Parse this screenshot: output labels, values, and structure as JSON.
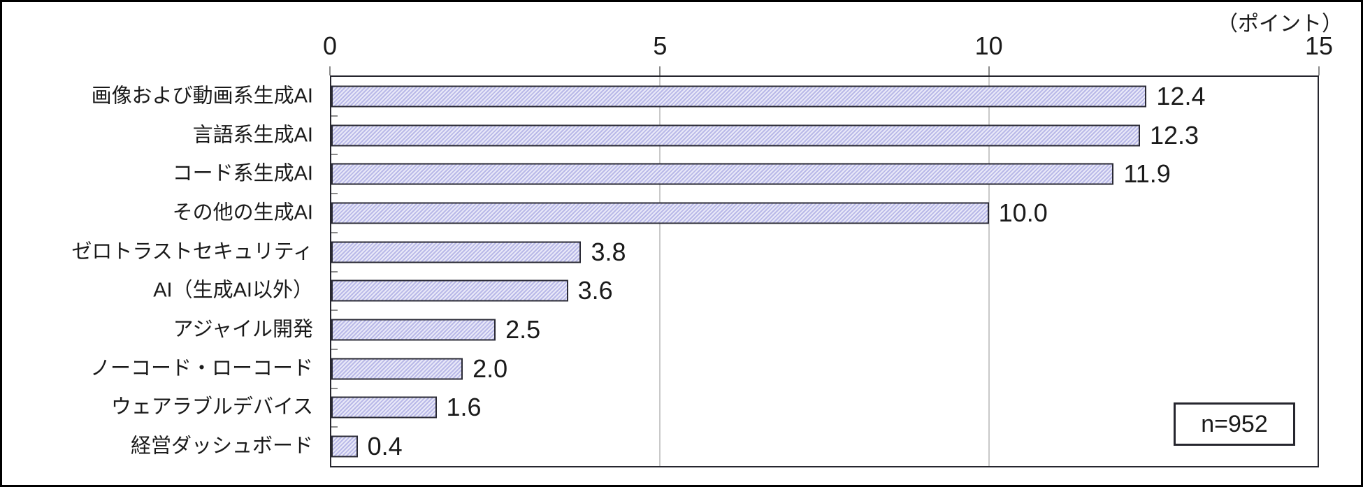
{
  "figure": {
    "unit_label": "（ポイント）",
    "sample_box_label": "n=952"
  },
  "chart_data": {
    "type": "bar",
    "orientation": "horizontal",
    "title": "",
    "xlabel": "（ポイント）",
    "ylabel": "",
    "xlim": [
      0,
      15
    ],
    "x_ticks": [
      "0",
      "5",
      "10",
      "15"
    ],
    "gridlines": [
      5,
      10
    ],
    "legend": "none",
    "annotation": "n=952",
    "categories": [
      "画像および動画系生成AI",
      "言語系生成AI",
      "コード系生成AI",
      "その他の生成AI",
      "ゼロトラストセキュリティ",
      "AI（生成AI以外）",
      "アジャイル開発",
      "ノーコード・ローコード",
      "ウェアラブルデバイス",
      "経営ダッシュボード"
    ],
    "values": [
      12.4,
      12.3,
      11.9,
      10.0,
      3.8,
      3.6,
      2.5,
      2.0,
      1.6,
      0.4
    ],
    "value_labels": [
      "12.4",
      "12.3",
      "11.9",
      "10.0",
      "3.8",
      "3.6",
      "2.5",
      "2.0",
      "1.6",
      "0.4"
    ]
  },
  "colors": {
    "frame": "#000000",
    "frameline": "#26262e",
    "text": "#1a1a1a",
    "gridline": "#c9c9c9",
    "tick": "#8a8a8a",
    "bar_border": "#2a2a35",
    "bar_hatch_dark": "#b9b9e8",
    "bar_hatch_light": "#e9e9f8"
  }
}
